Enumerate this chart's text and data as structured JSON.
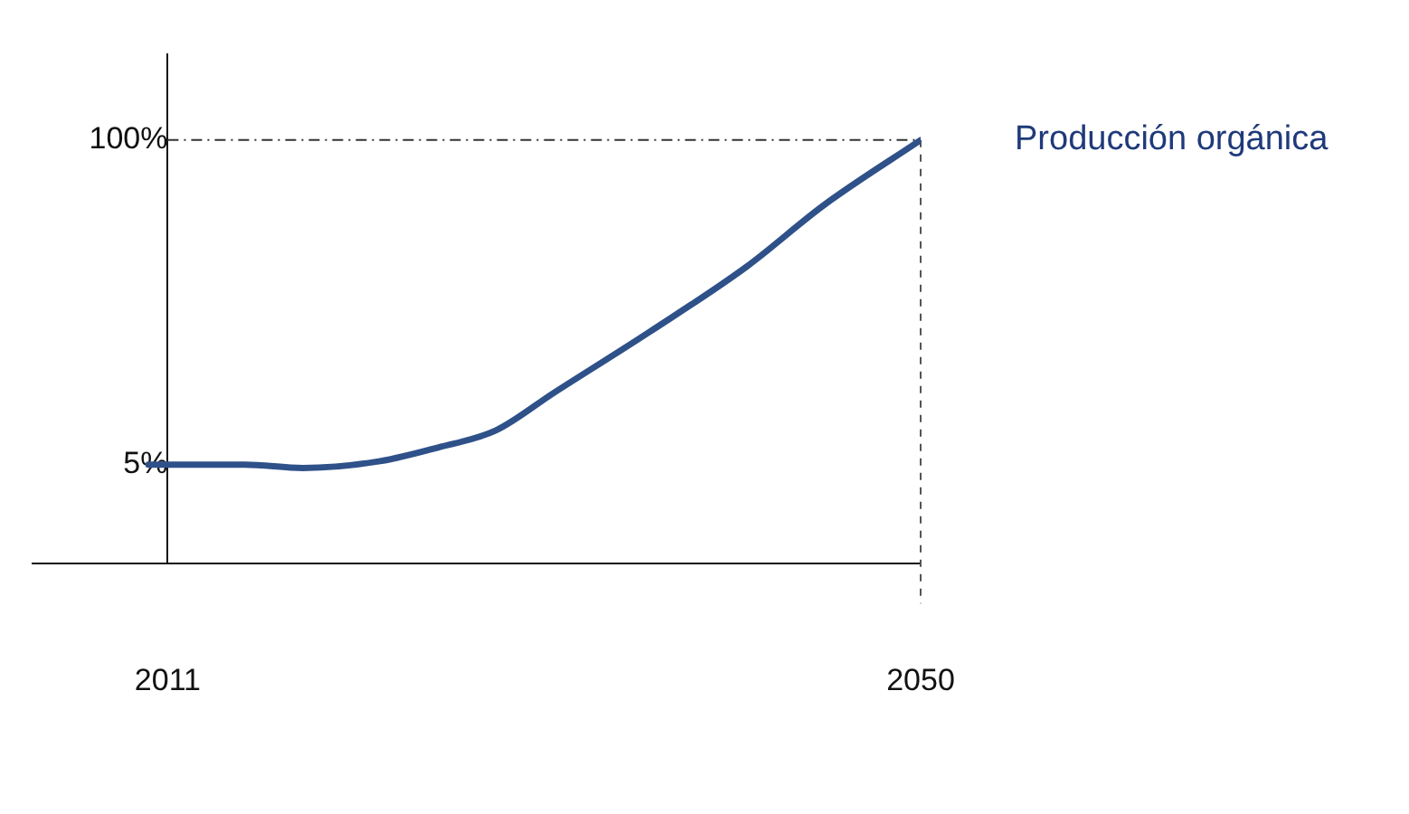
{
  "chart_data": {
    "type": "line",
    "x": [
      2010,
      2015,
      2018,
      2022,
      2025,
      2028,
      2031,
      2036,
      2041,
      2045,
      2050
    ],
    "series": [
      {
        "name": "Producción orgánica",
        "color": "#2f5189",
        "values": [
          5,
          5,
          4,
          6,
          10,
          15,
          26,
          44,
          63,
          81,
          100
        ]
      }
    ],
    "xlim": [
      2004,
      2050
    ],
    "xticks": [
      2011,
      2050
    ],
    "ylim": [
      -24,
      125
    ],
    "yticks": [
      {
        "value": 5,
        "label": "5%"
      },
      {
        "value": 100,
        "label": "100%"
      }
    ],
    "grid": false,
    "legend": false,
    "marker": "none",
    "line_style": "solid",
    "ref_lines": [
      {
        "axis": "y",
        "value": 100,
        "color": "#333333",
        "line_style": "dashdot"
      },
      {
        "axis": "x",
        "value": 2050,
        "color": "#555555",
        "line_style": "dashed"
      }
    ]
  }
}
